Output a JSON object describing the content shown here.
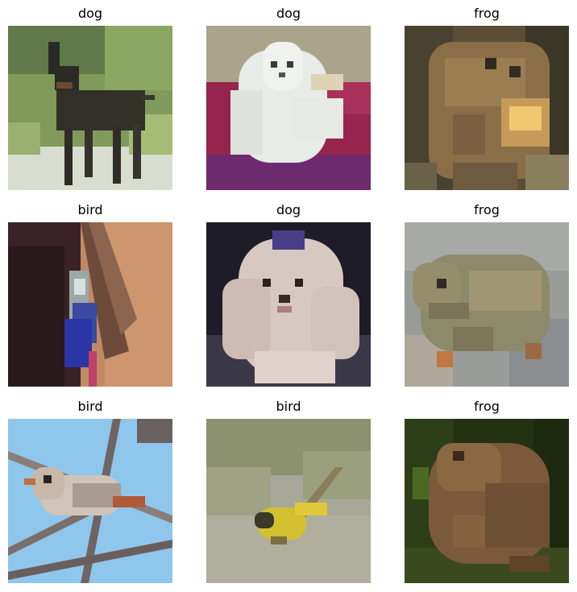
{
  "grid": {
    "items": [
      {
        "label": "dog"
      },
      {
        "label": "dog"
      },
      {
        "label": "frog"
      },
      {
        "label": "bird"
      },
      {
        "label": "dog"
      },
      {
        "label": "frog"
      },
      {
        "label": "bird"
      },
      {
        "label": "bird"
      },
      {
        "label": "frog"
      }
    ]
  }
}
